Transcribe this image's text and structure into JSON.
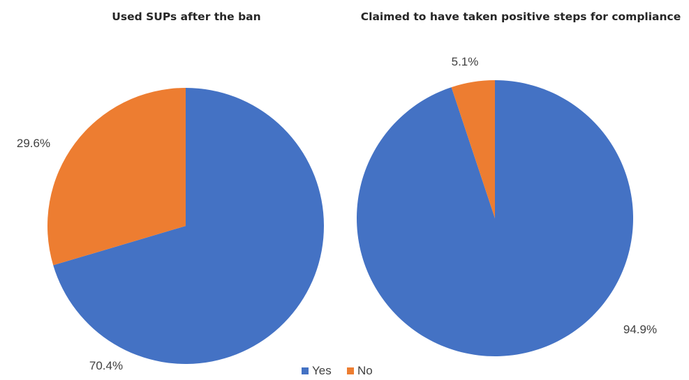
{
  "chart_data": [
    {
      "type": "pie",
      "title": "Used SUPs after the ban",
      "categories": [
        "Yes",
        "No"
      ],
      "values": [
        70.4,
        29.6
      ],
      "data_labels": [
        "70.4%",
        "29.6%"
      ],
      "colors": [
        "#4472C4",
        "#ED7D31"
      ]
    },
    {
      "type": "pie",
      "title": "Claimed to have taken positive steps for compliance",
      "categories": [
        "Yes",
        "No"
      ],
      "values": [
        94.9,
        5.1
      ],
      "data_labels": [
        "94.9%",
        "5.1%"
      ],
      "colors": [
        "#4472C4",
        "#ED7D31"
      ]
    }
  ],
  "legend": {
    "placement": "bottom",
    "items": [
      {
        "label": "Yes",
        "color": "#4472C4"
      },
      {
        "label": "No",
        "color": "#ED7D31"
      }
    ]
  }
}
